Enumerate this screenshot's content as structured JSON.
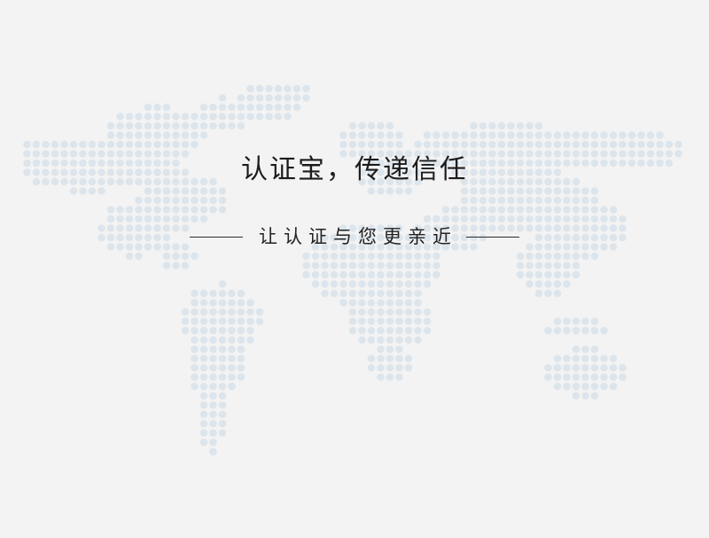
{
  "banner": {
    "headline": "认证宝，传递信任",
    "tagline": "让认证与您更亲近"
  },
  "background": {
    "icon": "dotted-world-map-icon",
    "color": "#f3f3f3",
    "dot_color": "#dde5ec"
  }
}
